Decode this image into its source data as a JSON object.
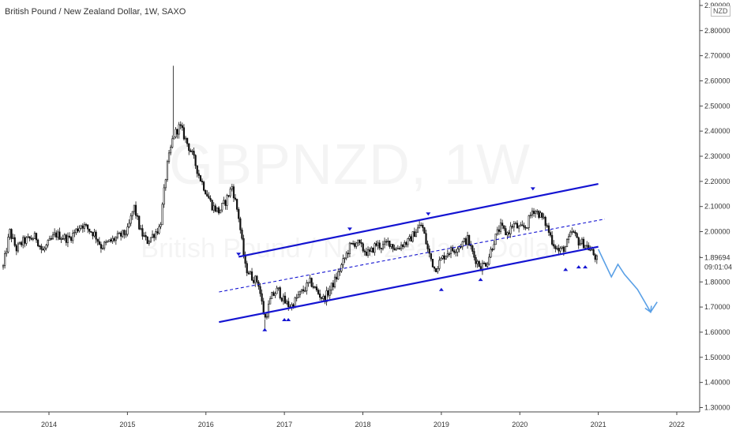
{
  "chart_data": {
    "type": "candlestick",
    "title": "British Pound / New Zealand Dollar, 1W, SAXO",
    "watermark_symbol": "GBPNZD, 1W",
    "watermark_name": "British Pound / New Zealand Dollar",
    "currency": "NZD",
    "y_axis_position": "right",
    "ylim": [
      1.28,
      2.92
    ],
    "y_ticks": [
      "1.30000",
      "1.40000",
      "1.50000",
      "1.60000",
      "1.70000",
      "1.80000",
      "1.90000",
      "2.00000",
      "2.10000",
      "2.20000",
      "2.30000",
      "2.40000",
      "2.50000",
      "2.60000",
      "2.70000",
      "2.80000",
      "2.90000"
    ],
    "x_ticks": [
      "2014",
      "2015",
      "2016",
      "2017",
      "2018",
      "2019",
      "2020",
      "2021",
      "2022"
    ],
    "last_price": "1.89694",
    "countdown": "09:01:04",
    "price_path": [
      [
        "2013-06",
        1.86
      ],
      [
        "2013-07",
        2.0
      ],
      [
        "2013-08",
        1.93
      ],
      [
        "2013-09",
        1.96
      ],
      [
        "2013-11",
        1.98
      ],
      [
        "2013-12",
        1.92
      ],
      [
        "2014-02",
        1.99
      ],
      [
        "2014-04",
        1.97
      ],
      [
        "2014-06",
        2.03
      ],
      [
        "2014-08",
        1.99
      ],
      [
        "2014-09",
        1.94
      ],
      [
        "2014-11",
        1.97
      ],
      [
        "2015-01",
        2.0
      ],
      [
        "2015-02",
        2.1
      ],
      [
        "2015-03",
        2.0
      ],
      [
        "2015-04",
        1.96
      ],
      [
        "2015-06",
        2.02
      ],
      [
        "2015-07",
        2.25
      ],
      [
        "2015-08",
        2.38
      ],
      [
        "2015-09",
        2.42
      ],
      [
        "2015-10",
        2.36
      ],
      [
        "2015-11",
        2.3
      ],
      [
        "2015-12",
        2.22
      ],
      [
        "2016-01",
        2.16
      ],
      [
        "2016-02",
        2.1
      ],
      [
        "2016-03",
        2.08
      ],
      [
        "2016-04",
        2.12
      ],
      [
        "2016-05",
        2.18
      ],
      [
        "2016-06",
        2.06
      ],
      [
        "2016-07",
        1.86
      ],
      [
        "2016-08",
        1.82
      ],
      [
        "2016-09",
        1.8
      ],
      [
        "2016-10",
        1.65
      ],
      [
        "2016-11",
        1.74
      ],
      [
        "2016-12",
        1.77
      ],
      [
        "2017-01",
        1.72
      ],
      [
        "2017-02",
        1.7
      ],
      [
        "2017-03",
        1.74
      ],
      [
        "2017-04",
        1.77
      ],
      [
        "2017-05",
        1.8
      ],
      [
        "2017-06",
        1.76
      ],
      [
        "2017-07",
        1.73
      ],
      [
        "2017-08",
        1.77
      ],
      [
        "2017-09",
        1.82
      ],
      [
        "2017-10",
        1.88
      ],
      [
        "2017-11",
        1.94
      ],
      [
        "2017-12",
        1.96
      ],
      [
        "2018-01",
        1.93
      ],
      [
        "2018-02",
        1.91
      ],
      [
        "2018-03",
        1.95
      ],
      [
        "2018-04",
        1.94
      ],
      [
        "2018-05",
        1.96
      ],
      [
        "2018-06",
        1.93
      ],
      [
        "2018-07",
        1.95
      ],
      [
        "2018-08",
        1.96
      ],
      [
        "2018-09",
        2.0
      ],
      [
        "2018-10",
        2.03
      ],
      [
        "2018-11",
        1.92
      ],
      [
        "2018-12",
        1.85
      ],
      [
        "2019-01",
        1.89
      ],
      [
        "2019-02",
        1.92
      ],
      [
        "2019-03",
        1.93
      ],
      [
        "2019-04",
        1.95
      ],
      [
        "2019-05",
        1.97
      ],
      [
        "2019-06",
        1.9
      ],
      [
        "2019-07",
        1.86
      ],
      [
        "2019-08",
        1.88
      ],
      [
        "2019-09",
        1.96
      ],
      [
        "2019-10",
        2.02
      ],
      [
        "2019-11",
        1.99
      ],
      [
        "2019-12",
        2.03
      ],
      [
        "2020-01",
        2.01
      ],
      [
        "2020-02",
        2.02
      ],
      [
        "2020-03",
        2.09
      ],
      [
        "2020-04",
        2.07
      ],
      [
        "2020-05",
        2.03
      ],
      [
        "2020-06",
        1.96
      ],
      [
        "2020-07",
        1.92
      ],
      [
        "2020-08",
        1.94
      ],
      [
        "2020-09",
        2.0
      ],
      [
        "2020-10",
        1.96
      ],
      [
        "2020-11",
        1.95
      ],
      [
        "2020-12",
        1.92
      ],
      [
        "2021-01",
        1.88
      ]
    ],
    "outlier_highs": [
      [
        "2015-08",
        2.66
      ],
      [
        "2016-10",
        1.61
      ]
    ],
    "channel": {
      "upper": [
        [
          "2016-06",
          1.9
        ],
        [
          "2021-01",
          2.19
        ]
      ],
      "mid": [
        [
          "2016-03",
          1.76
        ],
        [
          "2021-02",
          2.05
        ]
      ],
      "lower": [
        [
          "2016-03",
          1.64
        ],
        [
          "2021-01",
          1.94
        ]
      ]
    },
    "projection": [
      [
        "2021-01",
        1.93
      ],
      [
        "2021-03",
        1.82
      ],
      [
        "2021-04",
        1.87
      ],
      [
        "2021-05",
        1.83
      ],
      [
        "2021-07",
        1.77
      ],
      [
        "2021-09",
        1.68
      ],
      [
        "2021-10",
        1.72
      ]
    ],
    "markers": [
      {
        "t": "2016-06",
        "p": 1.91,
        "dir": "down"
      },
      {
        "t": "2016-10",
        "p": 1.61,
        "dir": "up"
      },
      {
        "t": "2017-01",
        "p": 1.65,
        "dir": "up"
      },
      {
        "t": "2017-01",
        "p": 1.65,
        "dir": "up"
      },
      {
        "t": "2017-11",
        "p": 2.01,
        "dir": "down"
      },
      {
        "t": "2018-11",
        "p": 2.07,
        "dir": "down"
      },
      {
        "t": "2019-01",
        "p": 1.77,
        "dir": "up"
      },
      {
        "t": "2019-07",
        "p": 1.81,
        "dir": "up"
      },
      {
        "t": "2020-03",
        "p": 2.17,
        "dir": "down"
      },
      {
        "t": "2020-08",
        "p": 1.85,
        "dir": "up"
      },
      {
        "t": "2020-10",
        "p": 1.86,
        "dir": "up"
      },
      {
        "t": "2020-11",
        "p": 1.86,
        "dir": "up"
      }
    ],
    "colors": {
      "candle_up": "#ffffff",
      "candle_down": "#111111",
      "channel": "#1414d2",
      "projection": "#5aa0e6",
      "price_label_bg": "#ffffff"
    }
  }
}
